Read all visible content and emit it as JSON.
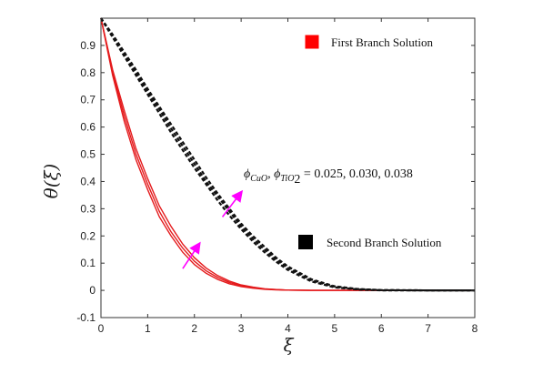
{
  "chart_data": {
    "type": "line",
    "xlabel": "ξ",
    "ylabel": "θ(ξ)",
    "xlim": [
      0,
      8
    ],
    "ylim": [
      -0.1,
      1.0
    ],
    "xticks": [
      0,
      1,
      2,
      3,
      4,
      5,
      6,
      7,
      8
    ],
    "yticks": [
      -0.1,
      0,
      0.1,
      0.2,
      0.3,
      0.4,
      0.5,
      0.6,
      0.7,
      0.8,
      0.9
    ],
    "grid": false,
    "x": [
      0,
      0.25,
      0.5,
      0.75,
      1.0,
      1.25,
      1.5,
      1.75,
      2.0,
      2.25,
      2.5,
      2.75,
      3.0,
      3.25,
      3.5,
      3.75,
      4.0,
      4.5,
      5.0,
      5.5,
      6.0,
      7.0,
      8.0
    ],
    "series": [
      {
        "branch": "first",
        "style": "solid",
        "color": "#e41a1c",
        "values": [
          1.0,
          0.79,
          0.62,
          0.48,
          0.37,
          0.27,
          0.2,
          0.14,
          0.095,
          0.063,
          0.04,
          0.024,
          0.014,
          0.008,
          0.004,
          0.002,
          0.001,
          0.0,
          0.0,
          0.0,
          0.0,
          0.0,
          0.0
        ]
      },
      {
        "branch": "first",
        "style": "solid",
        "color": "#e41a1c",
        "values": [
          1.0,
          0.8,
          0.64,
          0.5,
          0.39,
          0.29,
          0.215,
          0.155,
          0.107,
          0.072,
          0.047,
          0.029,
          0.017,
          0.01,
          0.005,
          0.003,
          0.001,
          0.0,
          0.0,
          0.0,
          0.0,
          0.0,
          0.0
        ]
      },
      {
        "branch": "first",
        "style": "solid",
        "color": "#e41a1c",
        "values": [
          1.0,
          0.81,
          0.66,
          0.52,
          0.41,
          0.31,
          0.235,
          0.17,
          0.12,
          0.082,
          0.054,
          0.034,
          0.02,
          0.012,
          0.006,
          0.003,
          0.001,
          0.0,
          0.0,
          0.0,
          0.0,
          0.0,
          0.0
        ]
      },
      {
        "branch": "second",
        "style": "dashed",
        "color": "#111111",
        "values": [
          1.0,
          0.93,
          0.86,
          0.79,
          0.72,
          0.65,
          0.58,
          0.515,
          0.45,
          0.39,
          0.33,
          0.275,
          0.225,
          0.18,
          0.14,
          0.105,
          0.075,
          0.033,
          0.011,
          0.003,
          0.0,
          0.0,
          0.0
        ]
      },
      {
        "branch": "second",
        "style": "dashed",
        "color": "#111111",
        "values": [
          1.0,
          0.935,
          0.87,
          0.8,
          0.73,
          0.665,
          0.595,
          0.53,
          0.465,
          0.4,
          0.345,
          0.29,
          0.235,
          0.19,
          0.15,
          0.113,
          0.082,
          0.037,
          0.013,
          0.004,
          0.001,
          0.0,
          0.0
        ]
      },
      {
        "branch": "second",
        "style": "dashed",
        "color": "#111111",
        "values": [
          1.0,
          0.94,
          0.875,
          0.81,
          0.74,
          0.675,
          0.61,
          0.545,
          0.48,
          0.415,
          0.355,
          0.3,
          0.245,
          0.2,
          0.16,
          0.12,
          0.088,
          0.041,
          0.015,
          0.005,
          0.001,
          0.0,
          0.0
        ]
      }
    ],
    "legend": [
      {
        "label": "First Branch Solution",
        "color": "#ff0000"
      },
      {
        "label": "Second Branch Solution",
        "color": "#000000"
      }
    ],
    "annotation": {
      "text": "ϕ",
      "sub1": "CuO",
      "sep": ", ϕ",
      "sub2": "TiO",
      "sub2b": "2",
      "rest": " = 0.025, 0.030, 0.038"
    },
    "arrows": [
      {
        "from": [
          1.75,
          0.08
        ],
        "to": [
          2.1,
          0.17
        ],
        "color": "#ff00ff"
      },
      {
        "from": [
          2.6,
          0.27
        ],
        "to": [
          3.0,
          0.36
        ],
        "color": "#ff00ff"
      }
    ]
  }
}
